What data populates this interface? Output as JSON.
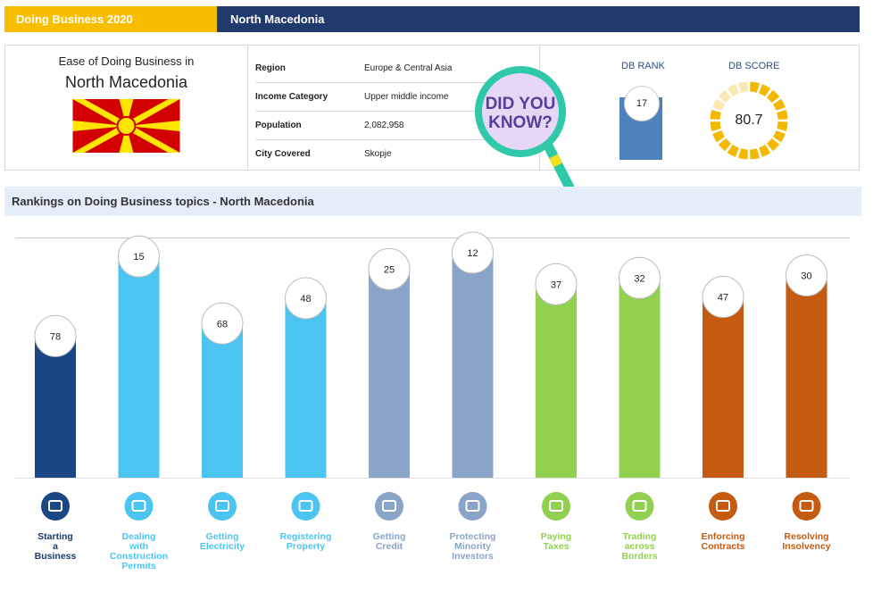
{
  "header": {
    "left_label": "Doing Business  2020",
    "right_label": "North Macedonia"
  },
  "profile": {
    "ease_line1": "Ease of Doing Business in",
    "ease_country": "North Macedonia",
    "facts": [
      {
        "label": "Region",
        "value": "Europe & Central Asia"
      },
      {
        "label": "Income Category",
        "value": "Upper middle income"
      },
      {
        "label": "Population",
        "value": "2,082,958"
      },
      {
        "label": "City Covered",
        "value": "Skopje"
      }
    ],
    "db_rank_label": "DB RANK",
    "db_rank": "17",
    "db_score_label": "DB SCORE",
    "db_score": "80.7",
    "did_you_know": [
      "DID YOU",
      "KNOW?"
    ]
  },
  "section_title": "Rankings on Doing Business topics - North Macedonia",
  "chart_data": {
    "type": "bar",
    "categories": [
      "Starting a Business",
      "Dealing with Construction Permits",
      "Getting Electricity",
      "Registering Property",
      "Getting Credit",
      "Protecting Minority Investors",
      "Paying Taxes",
      "Trading across Borders",
      "Enforcing Contracts",
      "Resolving Insolvency"
    ],
    "category_lines": [
      [
        "Starting",
        "a",
        "Business"
      ],
      [
        "Dealing",
        "with",
        "Construction",
        "Permits"
      ],
      [
        "Getting",
        "Electricity"
      ],
      [
        "Registering",
        "Property"
      ],
      [
        "Getting",
        "Credit"
      ],
      [
        "Protecting",
        "Minority",
        "Investors"
      ],
      [
        "Paying",
        "Taxes"
      ],
      [
        "Trading",
        "across",
        "Borders"
      ],
      [
        "Enforcing",
        "Contracts"
      ],
      [
        "Resolving",
        "Insolvency"
      ]
    ],
    "values": [
      78,
      15,
      68,
      48,
      25,
      12,
      37,
      32,
      47,
      30
    ],
    "colors": [
      "#1b4784",
      "#4cc4f1",
      "#4cc4f1",
      "#4cc4f1",
      "#8aa3c8",
      "#8aa3c8",
      "#92d050",
      "#92d050",
      "#c55a11",
      "#c55a11"
    ],
    "label_colors": [
      "#1b3a6b",
      "#4cc4f1",
      "#4cc4f1",
      "#4cc4f1",
      "#8aa3c8",
      "#8aa3c8",
      "#92d050",
      "#92d050",
      "#c55a11",
      "#c55a11"
    ],
    "icons": [
      "store-icon",
      "tools-icon",
      "lightning-icon",
      "buildings-icon",
      "credit-card-icon",
      "trend-line-icon",
      "money-icon",
      "truck-icon",
      "courthouse-icon",
      "gavel-icon"
    ],
    "ylim": [
      0,
      190
    ]
  }
}
